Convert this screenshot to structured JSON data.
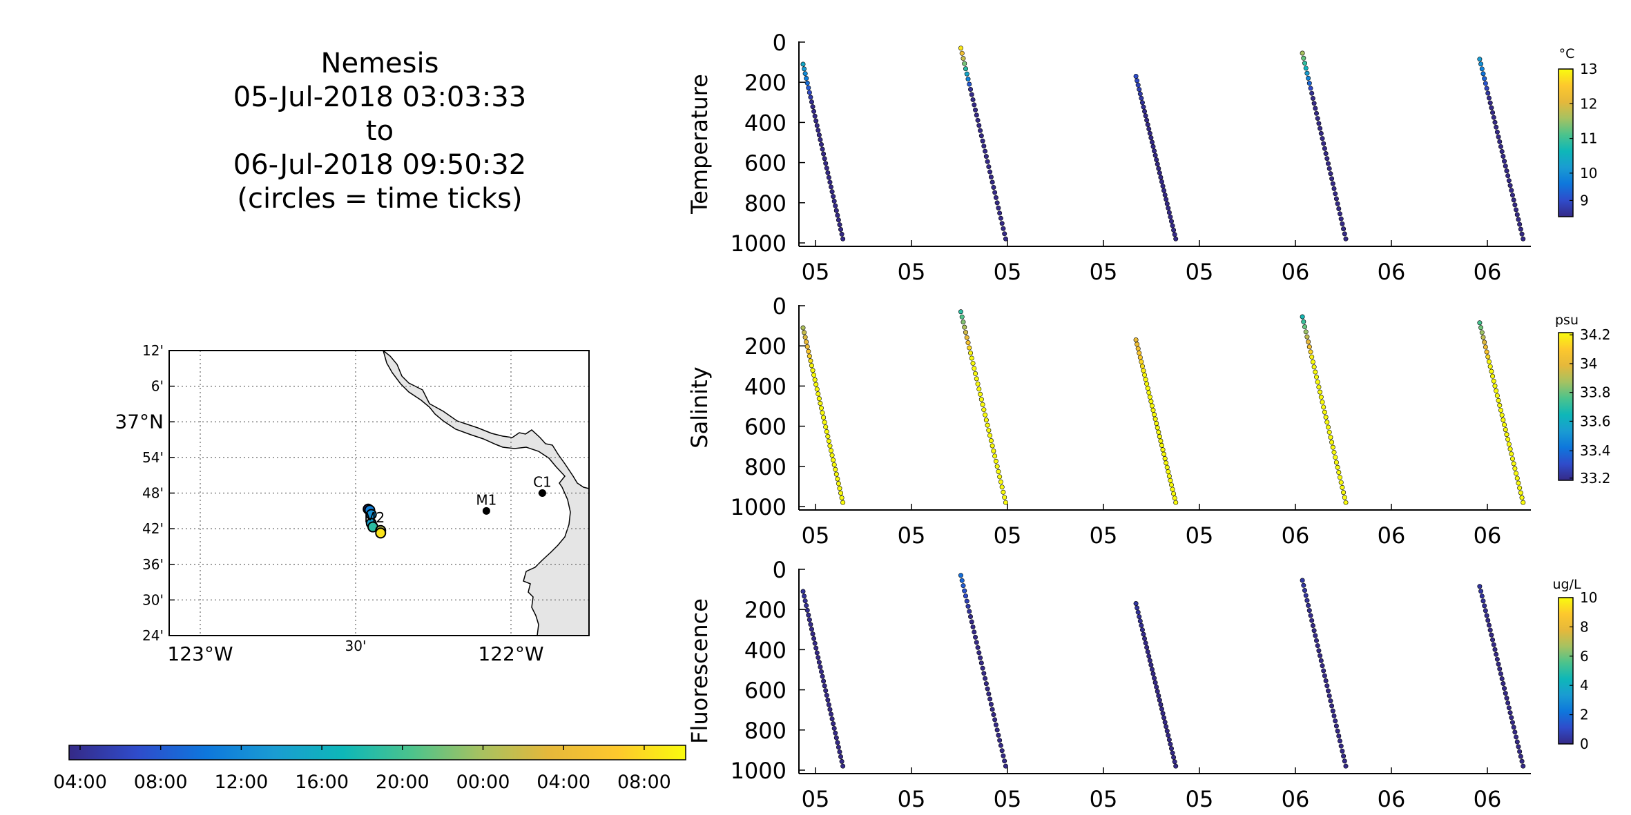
{
  "title_lines": [
    "Nemesis",
    "05-Jul-2018 03:03:33",
    "to",
    "06-Jul-2018 09:50:32",
    "(circles = time ticks)"
  ],
  "time_colorbar": {
    "tick_labels": [
      "04:00",
      "08:00",
      "12:00",
      "16:00",
      "20:00",
      "00:00",
      "04:00",
      "08:00"
    ]
  },
  "colors": {
    "parula": [
      "#352a87",
      "#2f4ccb",
      "#0e77dc",
      "#1a9cd2",
      "#0eb7b8",
      "#4cc38c",
      "#a6c261",
      "#e5b83b",
      "#fdc82d",
      "#f9fb0e"
    ],
    "land": "#e5e5e5"
  },
  "chart_data": [
    {
      "type": "map",
      "name": "track-map",
      "lat_ticks": [
        "12'",
        "6'",
        "37°N",
        "54'",
        "48'",
        "42'",
        "36'",
        "30'",
        "24'"
      ],
      "lon_ticks": [
        "123°W",
        "30'",
        "122°W"
      ],
      "lat_range": [
        36.4,
        37.2
      ],
      "lon_range": [
        -123.05,
        -121.7
      ],
      "stations": [
        {
          "label": "M1",
          "lat": 36.75,
          "lon": -122.03
        },
        {
          "label": "C1",
          "lat": 36.8,
          "lon": -121.85
        },
        {
          "label": "M2",
          "lat": 36.7,
          "lon": -122.39
        }
      ],
      "track": [
        {
          "lat": 36.755,
          "lon": -122.41,
          "c": 0.0
        },
        {
          "lat": 36.752,
          "lon": -122.405,
          "c": 0.25
        },
        {
          "lat": 36.74,
          "lon": -122.4,
          "c": 0.3
        },
        {
          "lat": 36.715,
          "lon": -122.4,
          "c": 0.35
        },
        {
          "lat": 36.705,
          "lon": -122.395,
          "c": 0.5
        },
        {
          "lat": 36.695,
          "lon": -122.37,
          "c": 0.7
        },
        {
          "lat": 36.688,
          "lon": -122.37,
          "c": 0.95
        }
      ]
    },
    {
      "type": "scatter",
      "name": "temperature",
      "ylabel": "Temperature",
      "unit": "°C",
      "y_ticks": [
        "0",
        "200",
        "400",
        "600",
        "800",
        "1000"
      ],
      "ylim": [
        0,
        1000
      ],
      "x_ticks": [
        "05",
        "05",
        "05",
        "05",
        "05",
        "06",
        "06",
        "06"
      ],
      "clim": [
        8.5,
        13
      ],
      "cbar_ticks": [
        "13",
        "12",
        "11",
        "10",
        "9"
      ],
      "profiles": [
        {
          "start_t": 0.0,
          "end_t": 0.055,
          "z0": 110,
          "z1": 980,
          "surface_c": 10.2
        },
        {
          "start_t": 0.218,
          "end_t": 0.28,
          "z0": 30,
          "z1": 980,
          "surface_c": 12.8
        },
        {
          "start_t": 0.46,
          "end_t": 0.515,
          "z0": 170,
          "z1": 980,
          "surface_c": 9.0
        },
        {
          "start_t": 0.69,
          "end_t": 0.75,
          "z0": 55,
          "z1": 980,
          "surface_c": 11.5
        },
        {
          "start_t": 0.935,
          "end_t": 0.995,
          "z0": 85,
          "z1": 980,
          "surface_c": 10.0
        }
      ]
    },
    {
      "type": "scatter",
      "name": "salinity",
      "ylabel": "Salinity",
      "unit": "psu",
      "y_ticks": [
        "0",
        "200",
        "400",
        "600",
        "800",
        "1000"
      ],
      "ylim": [
        0,
        1000
      ],
      "x_ticks": [
        "05",
        "05",
        "05",
        "05",
        "05",
        "06",
        "06",
        "06"
      ],
      "clim": [
        33.1,
        34.2
      ],
      "cbar_ticks": [
        "34.2",
        "34",
        "33.8",
        "33.6",
        "33.4",
        "33.2"
      ],
      "profiles": [
        {
          "start_t": 0.0,
          "end_t": 0.055,
          "z0": 110,
          "z1": 980,
          "surface_c": 33.85
        },
        {
          "start_t": 0.218,
          "end_t": 0.28,
          "z0": 30,
          "z1": 980,
          "surface_c": 33.65
        },
        {
          "start_t": 0.46,
          "end_t": 0.515,
          "z0": 170,
          "z1": 980,
          "surface_c": 33.98
        },
        {
          "start_t": 0.69,
          "end_t": 0.75,
          "z0": 55,
          "z1": 980,
          "surface_c": 33.6
        },
        {
          "start_t": 0.935,
          "end_t": 0.995,
          "z0": 85,
          "z1": 980,
          "surface_c": 33.7
        }
      ]
    },
    {
      "type": "scatter",
      "name": "fluorescence",
      "ylabel": "Fluorescence",
      "unit": "ug/L",
      "y_ticks": [
        "0",
        "200",
        "400",
        "600",
        "800",
        "1000"
      ],
      "ylim": [
        0,
        1000
      ],
      "x_ticks": [
        "05",
        "05",
        "05",
        "05",
        "05",
        "06",
        "06",
        "06"
      ],
      "clim": [
        0,
        10
      ],
      "cbar_ticks": [
        "10",
        "8",
        "6",
        "4",
        "2",
        "0"
      ],
      "profiles": [
        {
          "start_t": 0.0,
          "end_t": 0.055,
          "z0": 110,
          "z1": 980,
          "surface_c": 0.3
        },
        {
          "start_t": 0.218,
          "end_t": 0.28,
          "z0": 30,
          "z1": 980,
          "surface_c": 2.0
        },
        {
          "start_t": 0.46,
          "end_t": 0.515,
          "z0": 170,
          "z1": 980,
          "surface_c": 0.4
        },
        {
          "start_t": 0.69,
          "end_t": 0.75,
          "z0": 55,
          "z1": 980,
          "surface_c": 0.5
        },
        {
          "start_t": 0.935,
          "end_t": 0.995,
          "z0": 85,
          "z1": 980,
          "surface_c": 0.4
        }
      ]
    }
  ]
}
